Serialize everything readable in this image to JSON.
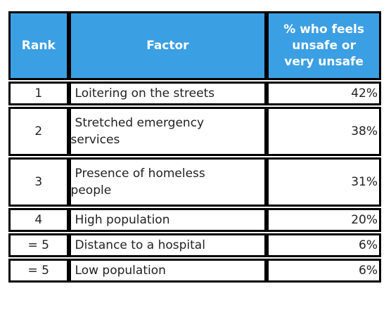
{
  "table": {
    "headers": {
      "rank": "Rank",
      "factor": "Factor",
      "percent_line1": "% who feels",
      "percent_line2": "unsafe or",
      "percent_line3": "very unsafe"
    },
    "rows": [
      {
        "rank": "1",
        "factor_line1": "Loitering on the streets",
        "factor_line2": "",
        "percent": "42%"
      },
      {
        "rank": "2",
        "factor_line1": "Stretched emergency",
        "factor_line2": "services",
        "percent": "38%"
      },
      {
        "rank": "3",
        "factor_line1": "Presence of homeless",
        "factor_line2": "people",
        "percent": "31%"
      },
      {
        "rank": "4",
        "factor_line1": "High population",
        "factor_line2": "",
        "percent": "20%"
      },
      {
        "rank": "= 5",
        "factor_line1": "Distance to a hospital",
        "factor_line2": "",
        "percent": "6%"
      },
      {
        "rank": "= 5",
        "factor_line1": "Low population",
        "factor_line2": "",
        "percent": "6%"
      }
    ]
  },
  "colors": {
    "header_background": "#3b9fe3",
    "header_text": "#ffffff",
    "border": "#000000"
  }
}
